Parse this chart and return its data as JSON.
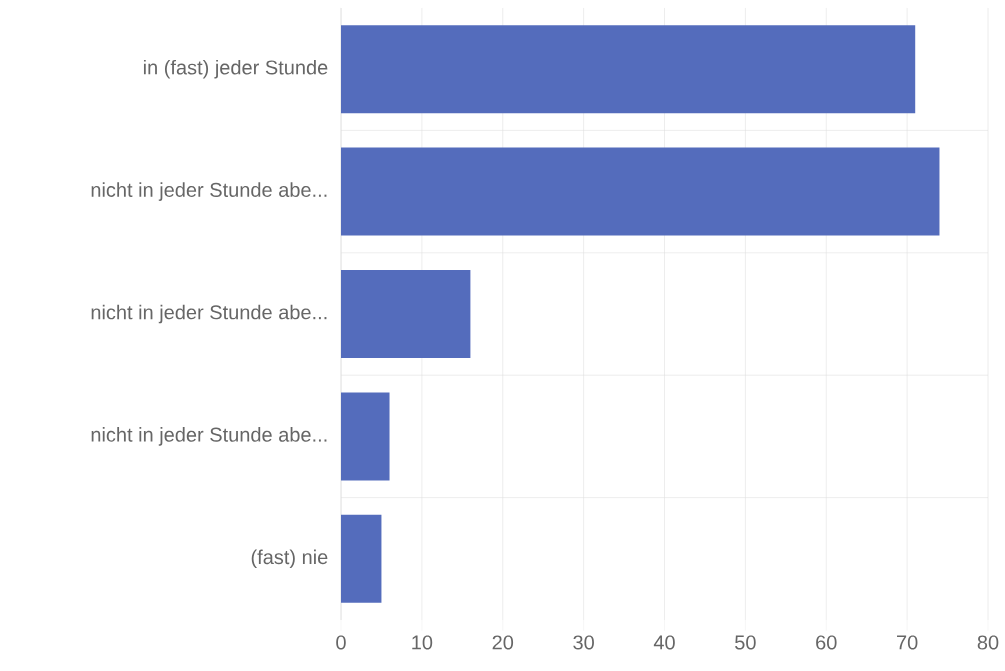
{
  "chart_data": {
    "type": "bar",
    "orientation": "horizontal",
    "categories": [
      "in (fast) jeder Stunde",
      "nicht in jeder Stunde abe...",
      "nicht in jeder Stunde abe...",
      "nicht in jeder Stunde abe...",
      "(fast) nie"
    ],
    "values": [
      71,
      74,
      16,
      6,
      5
    ],
    "color": "#546cbc",
    "xlim": [
      0,
      80
    ],
    "xticks": [
      0,
      10,
      20,
      30,
      40,
      50,
      60,
      70,
      80
    ],
    "grid": true
  }
}
